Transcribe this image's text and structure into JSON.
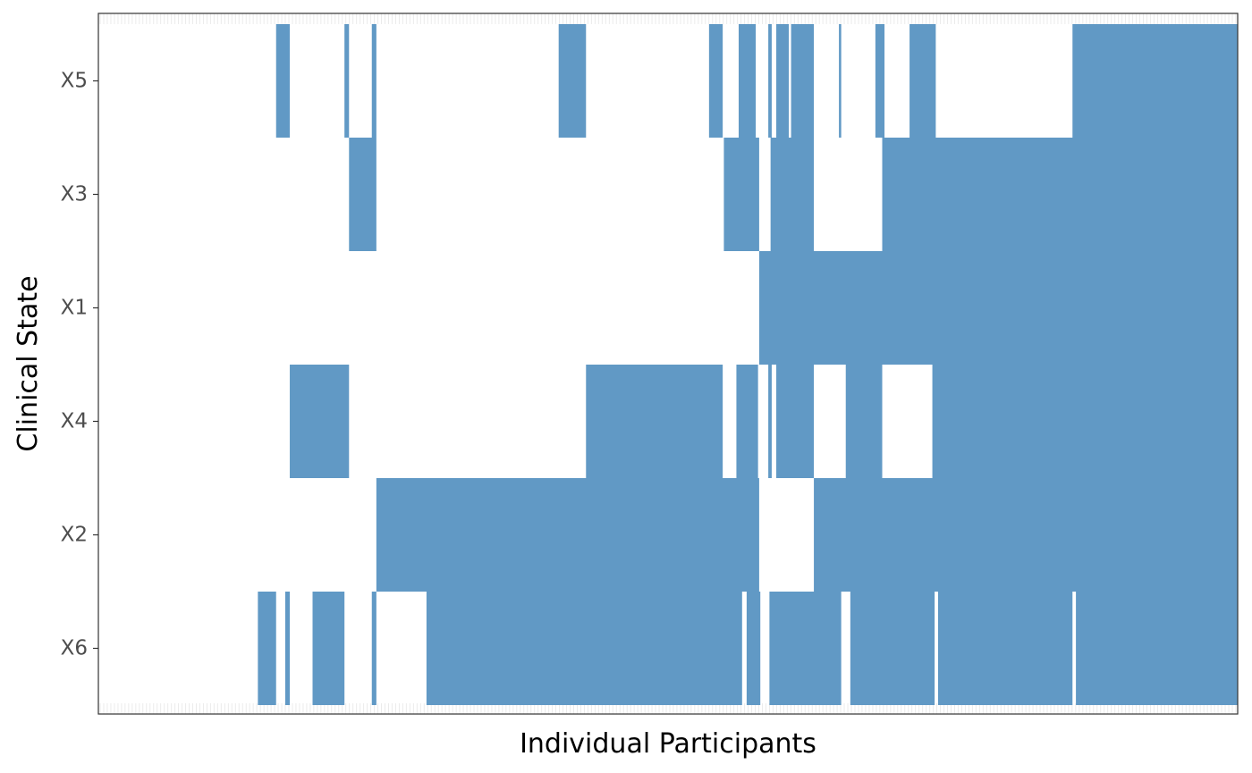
{
  "chart_data": {
    "type": "heatmap",
    "title": "",
    "xlabel": "Individual Participants",
    "ylabel": "Clinical State",
    "n_participants": 1000,
    "x_range": [
      0,
      1000
    ],
    "grid": false,
    "legend": "none",
    "colors": {
      "filled": "#6199C5",
      "empty": "#ffffff",
      "panel_border": "#333333",
      "tick_label": "#4d4d4d",
      "x_tick_marks": "#ebebeb"
    },
    "rows": [
      {
        "state": "X5",
        "filled_ranges": [
          [
            156,
            168
          ],
          [
            216,
            220
          ],
          [
            240,
            244
          ],
          [
            404,
            428
          ],
          [
            536,
            548
          ],
          [
            562,
            577
          ],
          [
            588,
            591
          ],
          [
            595,
            606
          ],
          [
            608,
            628
          ],
          [
            650,
            652
          ],
          [
            682,
            690
          ],
          [
            712,
            735
          ],
          [
            855,
            1000
          ]
        ]
      },
      {
        "state": "X3",
        "filled_ranges": [
          [
            220,
            244
          ],
          [
            549,
            580
          ],
          [
            590,
            628
          ],
          [
            688,
            1000
          ]
        ]
      },
      {
        "state": "X1",
        "filled_ranges": [
          [
            580,
            1000
          ]
        ]
      },
      {
        "state": "X4",
        "filled_ranges": [
          [
            168,
            220
          ],
          [
            428,
            548
          ],
          [
            560,
            579
          ],
          [
            588,
            591
          ],
          [
            595,
            628
          ],
          [
            656,
            688
          ],
          [
            732,
            1000
          ]
        ]
      },
      {
        "state": "X2",
        "filled_ranges": [
          [
            244,
            580
          ],
          [
            628,
            1000
          ]
        ]
      },
      {
        "state": "X6",
        "filled_ranges": [
          [
            140,
            156
          ],
          [
            164,
            168
          ],
          [
            188,
            216
          ],
          [
            240,
            244
          ],
          [
            288,
            565
          ],
          [
            569,
            581
          ],
          [
            589,
            652
          ],
          [
            660,
            734
          ],
          [
            737,
            855
          ],
          [
            858,
            1000
          ]
        ]
      }
    ]
  }
}
